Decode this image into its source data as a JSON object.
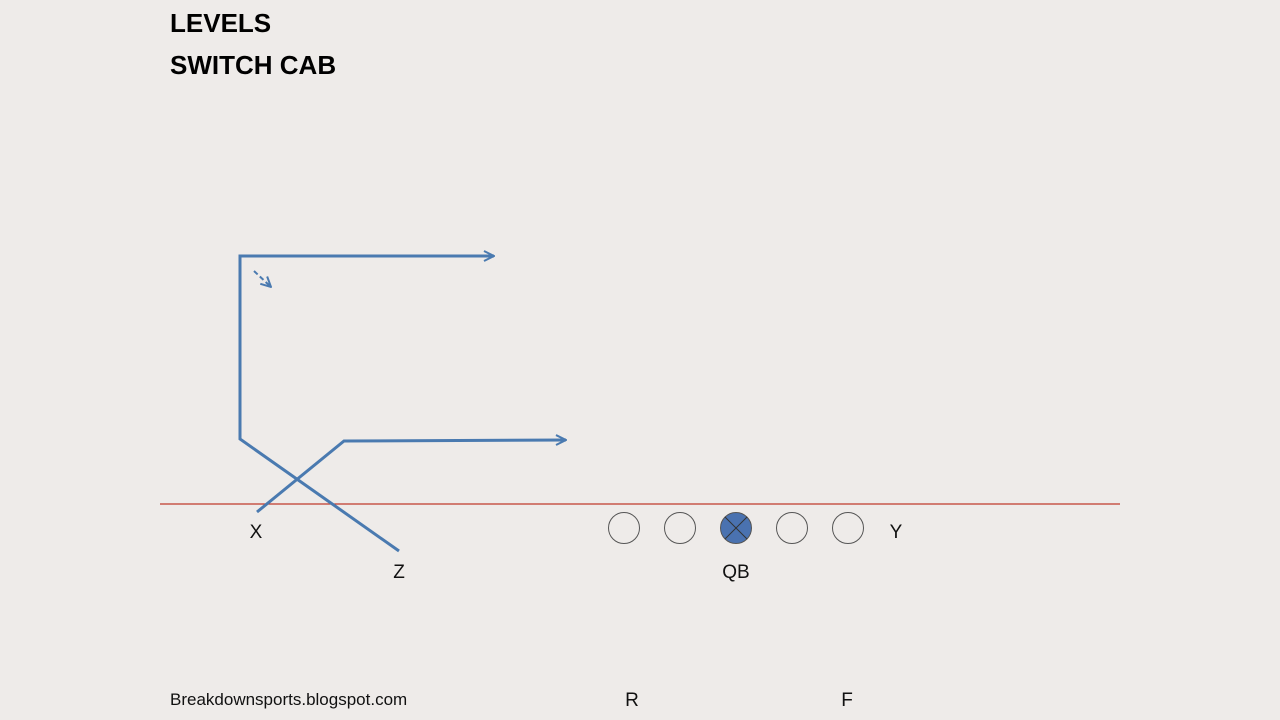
{
  "diagram": {
    "title_line1": "LEVELS",
    "title_line2": "SWITCH CAB",
    "footer": "Breakdownsports.blogspot.com",
    "route_color": "#4a7ab0",
    "line_of_scrimmage_color": "#c0392b",
    "qb_fill_color": "#4a72b0",
    "players": {
      "x": "X",
      "z": "Z",
      "qb": "QB",
      "y": "Y",
      "r": "R",
      "f": "F"
    }
  }
}
